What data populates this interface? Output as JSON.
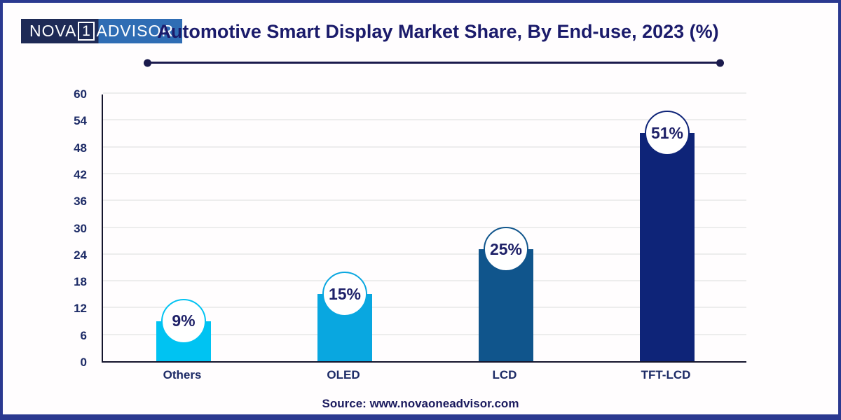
{
  "header": {
    "logo": {
      "part1": "NOVA",
      "number": "1",
      "part2": "ADVISOR",
      "dark_bg": "#1e2a56",
      "light_bg": "#2f6db4"
    },
    "title": "Automotive Smart Display Market Share, By End-use, 2023 (%)"
  },
  "chart_data": {
    "type": "bar",
    "title": "Automotive Smart Display Market Share, By End-use, 2023 (%)",
    "categories": [
      "Others",
      "OLED",
      "LCD",
      "TFT-LCD"
    ],
    "values": [
      9,
      15,
      25,
      51
    ],
    "value_labels": [
      "9%",
      "15%",
      "25%",
      "51%"
    ],
    "bar_colors": [
      "#00c3f2",
      "#09a7e0",
      "#10558c",
      "#0e2478"
    ],
    "ylim": [
      0,
      60
    ],
    "yticks": [
      0,
      6,
      12,
      18,
      24,
      30,
      36,
      42,
      48,
      54,
      60
    ],
    "xlabel": "",
    "ylabel": "",
    "grid": "horizontal",
    "legend": "none",
    "accent_navy": "#1b1b6b",
    "gridline_color": "#ededed"
  },
  "footer": {
    "source": "Source: www.novaoneadvisor.com"
  }
}
